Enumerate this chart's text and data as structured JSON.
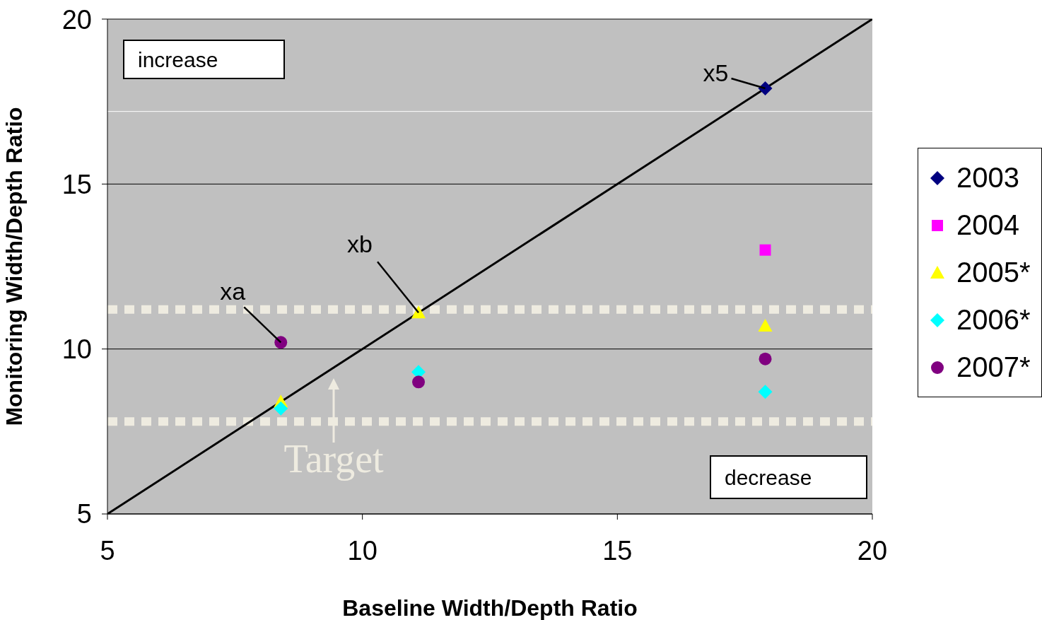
{
  "chart_data": {
    "type": "scatter",
    "xlabel": "Baseline Width/Depth Ratio",
    "ylabel": "Monitoring Width/Depth Ratio",
    "xlim": [
      5,
      20
    ],
    "xticks": [
      5,
      10,
      15,
      20
    ],
    "ylim": [
      5,
      20
    ],
    "yticks": [
      5,
      10,
      15,
      20
    ],
    "grid": "y",
    "legend": "right",
    "series": [
      {
        "type": "line",
        "x": [
          5,
          20
        ],
        "values": [
          5,
          20
        ],
        "color": "#000000",
        "marker": "none"
      },
      {
        "name": "2003",
        "color": "#000080",
        "marker": "diamond",
        "x": [
          17.9
        ],
        "values": [
          17.9
        ]
      },
      {
        "name": "2004",
        "color": "#ff00ff",
        "marker": "square",
        "x": [
          17.9
        ],
        "values": [
          13.0
        ]
      },
      {
        "name": "2005*",
        "color": "#ffff00",
        "marker": "triangle",
        "x": [
          8.4,
          11.1,
          17.9
        ],
        "values": [
          8.4,
          11.1,
          10.7
        ]
      },
      {
        "name": "2006*",
        "color": "#00ffff",
        "marker": "diamond",
        "x": [
          8.4,
          11.1,
          17.9
        ],
        "values": [
          8.2,
          9.3,
          8.7
        ]
      },
      {
        "name": "2007*",
        "color": "#800080",
        "marker": "circle",
        "x": [
          8.4,
          11.1,
          17.9
        ],
        "values": [
          10.2,
          9.0,
          9.7
        ]
      }
    ],
    "ref_lines": [
      {
        "axis": "y",
        "value": 11.2,
        "color": "#eeebe0",
        "line_style": "dotted"
      },
      {
        "axis": "y",
        "value": 7.8,
        "color": "#eeebe0",
        "line_style": "dotted"
      },
      {
        "axis": "y",
        "value": 17.2,
        "color": "#ffffff",
        "line_style": "solid"
      }
    ],
    "annotations": [
      "increase",
      "decrease",
      {
        "text": "x5",
        "x": 17.9,
        "y": 17.9
      },
      {
        "text": "xb",
        "x": 11.1,
        "y": 11.1
      },
      {
        "text": "xa",
        "x": 8.4,
        "y": 10.2
      },
      "Target"
    ]
  }
}
